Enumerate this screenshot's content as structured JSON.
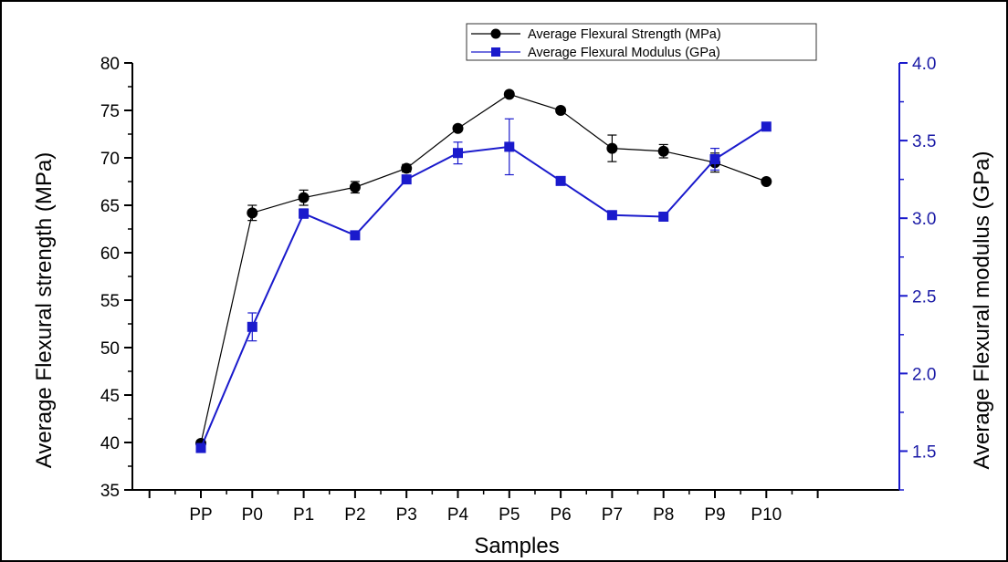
{
  "chart_data": {
    "type": "line",
    "title": "",
    "xlabel": "Samples",
    "ylabel_left": "Average Flexural strength (MPa)",
    "ylabel_right": "Average Flexural modulus (GPa)",
    "categories": [
      "PP",
      "P0",
      "P1",
      "P2",
      "P3",
      "P4",
      "P5",
      "P6",
      "P7",
      "P8",
      "P9",
      "P10"
    ],
    "ylim_left": [
      35,
      80
    ],
    "ylim_right": [
      1.25,
      4.0
    ],
    "yticks_left": [
      "35",
      "40",
      "45",
      "50",
      "55",
      "60",
      "65",
      "70",
      "75",
      "80"
    ],
    "yticks_right": [
      "1.5",
      "2.0",
      "2.5",
      "3.0",
      "3.5",
      "4.0"
    ],
    "grid": false,
    "legend_position": "top-center",
    "series": [
      {
        "name": "Average Flexural Strength (MPa)",
        "axis": "left",
        "color": "#000000",
        "marker": "circle",
        "values": [
          39.9,
          64.2,
          65.8,
          66.9,
          68.9,
          73.1,
          76.7,
          75.0,
          71.0,
          70.7,
          69.5,
          67.5
        ],
        "errors": [
          0.3,
          0.8,
          0.8,
          0.6,
          0.4,
          0.3,
          0.2,
          0.2,
          1.4,
          0.7,
          1.0,
          0.0
        ]
      },
      {
        "name": "Average Flexural Modulus (GPa)",
        "axis": "right",
        "color": "#1a1acc",
        "marker": "square",
        "values": [
          1.52,
          2.3,
          3.03,
          2.89,
          3.25,
          3.42,
          3.46,
          3.24,
          3.02,
          3.01,
          3.38,
          3.59
        ],
        "errors": [
          0.0,
          0.09,
          0.03,
          0.0,
          0.0,
          0.07,
          0.18,
          0.0,
          0.0,
          0.0,
          0.07,
          0.0
        ]
      }
    ]
  }
}
